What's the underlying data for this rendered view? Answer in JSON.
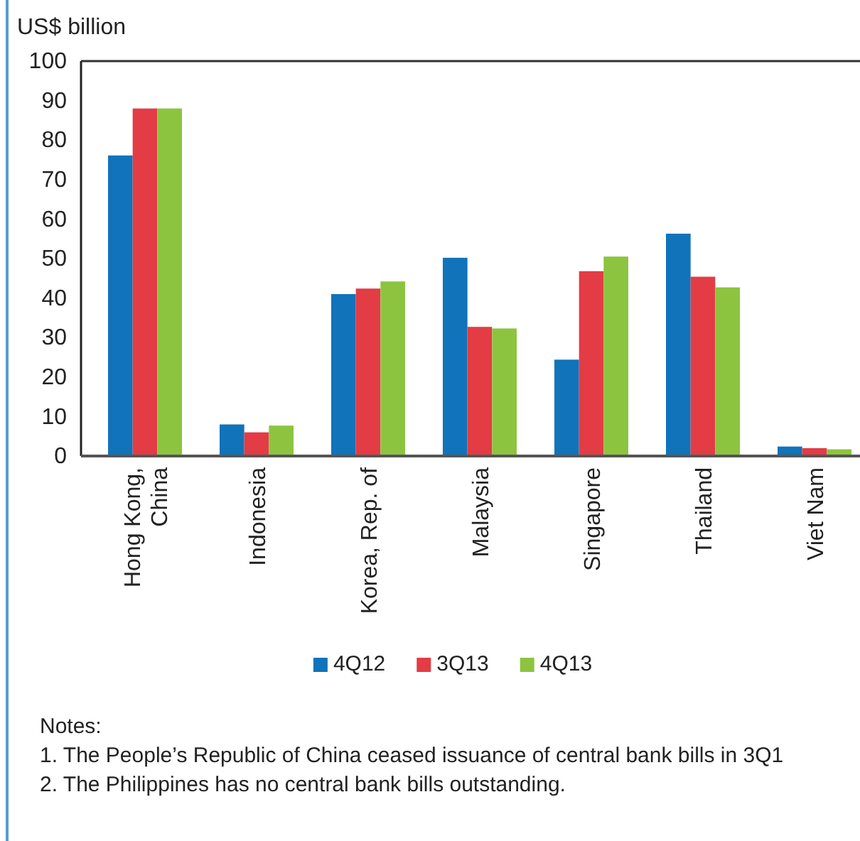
{
  "chart_data": {
    "type": "bar",
    "ylabel": "US$ billion",
    "categories": [
      "Hong Kong, China",
      "Indonesia",
      "Korea, Rep. of",
      "Malaysia",
      "Singapore",
      "Thailand",
      "Viet Nam"
    ],
    "series": [
      {
        "name": "4Q12",
        "color": "#1173ba",
        "values": [
          76.1,
          8.0,
          41.0,
          50.2,
          24.4,
          56.3,
          2.4
        ]
      },
      {
        "name": "3Q13",
        "color": "#e33c45",
        "values": [
          88.0,
          6.0,
          42.4,
          32.7,
          46.8,
          45.4,
          2.0
        ]
      },
      {
        "name": "4Q13",
        "color": "#8cc43f",
        "values": [
          88.0,
          7.7,
          44.2,
          32.3,
          50.5,
          42.7,
          1.7
        ]
      }
    ],
    "ylim": [
      0,
      100
    ],
    "yticks": [
      0,
      10,
      20,
      30,
      40,
      50,
      60,
      70,
      80,
      90,
      100
    ],
    "grid": false,
    "legend": "bottom",
    "annotations": [
      "Notes:",
      "1. The People’s Republic of China ceased issuance of central bank bills in 3Q1",
      "2. The Philippines has no central bank bills outstanding."
    ]
  }
}
